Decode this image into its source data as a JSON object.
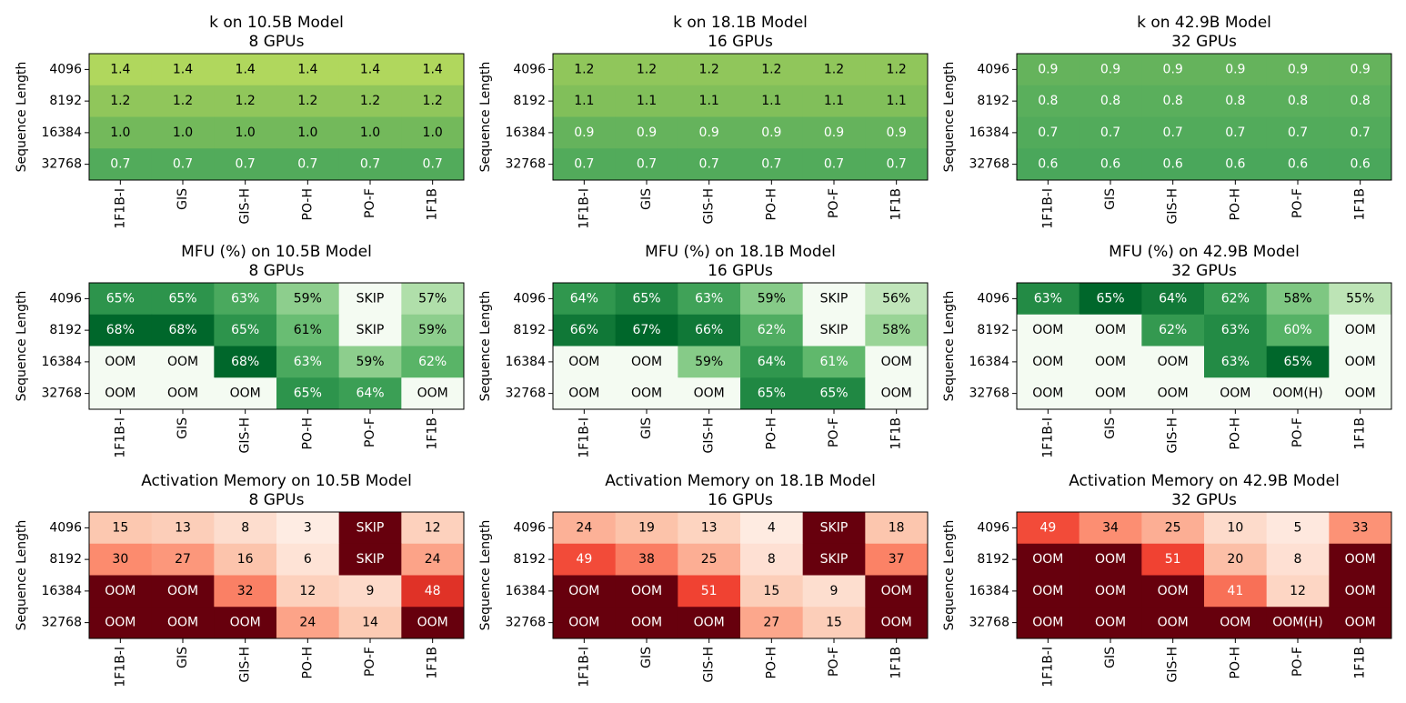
{
  "figure": {
    "ylabel": "Sequence Length",
    "rows": [
      "4096",
      "8192",
      "16384",
      "32768"
    ],
    "cols": [
      "1F1B-I",
      "GIS",
      "GIS-H",
      "PO-H",
      "PO-F",
      "1F1B"
    ]
  },
  "chart_data": [
    {
      "type": "heatmap",
      "title": "k on 10.5B Model",
      "subtitle": "8 GPUs",
      "cmap": "greens-k",
      "values": [
        [
          1.4,
          1.4,
          1.4,
          1.4,
          1.4,
          1.4
        ],
        [
          1.2,
          1.2,
          1.2,
          1.2,
          1.2,
          1.2
        ],
        [
          1.0,
          1.0,
          1.0,
          1.0,
          1.0,
          1.0
        ],
        [
          0.7,
          0.7,
          0.7,
          0.7,
          0.7,
          0.7
        ]
      ],
      "labels": [
        [
          "1.4",
          "1.4",
          "1.4",
          "1.4",
          "1.4",
          "1.4"
        ],
        [
          "1.2",
          "1.2",
          "1.2",
          "1.2",
          "1.2",
          "1.2"
        ],
        [
          "1.0",
          "1.0",
          "1.0",
          "1.0",
          "1.0",
          "1.0"
        ],
        [
          "0.7",
          "0.7",
          "0.7",
          "0.7",
          "0.7",
          "0.7"
        ]
      ],
      "vmin": 0.3,
      "vmax": 1.5
    },
    {
      "type": "heatmap",
      "title": "k on 18.1B Model",
      "subtitle": "16 GPUs",
      "cmap": "greens-k",
      "values": [
        [
          1.2,
          1.2,
          1.2,
          1.2,
          1.2,
          1.2
        ],
        [
          1.1,
          1.1,
          1.1,
          1.1,
          1.1,
          1.1
        ],
        [
          0.9,
          0.9,
          0.9,
          0.9,
          0.9,
          0.9
        ],
        [
          0.7,
          0.7,
          0.7,
          0.7,
          0.7,
          0.7
        ]
      ],
      "labels": [
        [
          "1.2",
          "1.2",
          "1.2",
          "1.2",
          "1.2",
          "1.2"
        ],
        [
          "1.1",
          "1.1",
          "1.1",
          "1.1",
          "1.1",
          "1.1"
        ],
        [
          "0.9",
          "0.9",
          "0.9",
          "0.9",
          "0.9",
          "0.9"
        ],
        [
          "0.7",
          "0.7",
          "0.7",
          "0.7",
          "0.7",
          "0.7"
        ]
      ],
      "vmin": 0.3,
      "vmax": 1.5
    },
    {
      "type": "heatmap",
      "title": "k on 42.9B Model",
      "subtitle": "32 GPUs",
      "cmap": "greens-k",
      "values": [
        [
          0.9,
          0.9,
          0.9,
          0.9,
          0.9,
          0.9
        ],
        [
          0.8,
          0.8,
          0.8,
          0.8,
          0.8,
          0.8
        ],
        [
          0.7,
          0.7,
          0.7,
          0.7,
          0.7,
          0.7
        ],
        [
          0.6,
          0.6,
          0.6,
          0.6,
          0.6,
          0.6
        ]
      ],
      "labels": [
        [
          "0.9",
          "0.9",
          "0.9",
          "0.9",
          "0.9",
          "0.9"
        ],
        [
          "0.8",
          "0.8",
          "0.8",
          "0.8",
          "0.8",
          "0.8"
        ],
        [
          "0.7",
          "0.7",
          "0.7",
          "0.7",
          "0.7",
          "0.7"
        ],
        [
          "0.6",
          "0.6",
          "0.6",
          "0.6",
          "0.6",
          "0.6"
        ]
      ],
      "vmin": 0.3,
      "vmax": 1.5
    },
    {
      "type": "heatmap",
      "title": "MFU (%) on 10.5B Model",
      "subtitle": "8 GPUs",
      "cmap": "greens",
      "values": [
        [
          65,
          65,
          63,
          59,
          null,
          57
        ],
        [
          68,
          68,
          65,
          61,
          null,
          59
        ],
        [
          null,
          null,
          68,
          63,
          59,
          62
        ],
        [
          null,
          null,
          null,
          65,
          64,
          null
        ]
      ],
      "labels": [
        [
          "65%",
          "65%",
          "63%",
          "59%",
          "SKIP",
          "57%"
        ],
        [
          "68%",
          "68%",
          "65%",
          "61%",
          "SKIP",
          "59%"
        ],
        [
          "OOM",
          "OOM",
          "68%",
          "63%",
          "59%",
          "62%"
        ],
        [
          "OOM",
          "OOM",
          "OOM",
          "65%",
          "64%",
          "OOM"
        ]
      ],
      "vmin": 54,
      "vmax": 68
    },
    {
      "type": "heatmap",
      "title": "MFU (%) on 18.1B Model",
      "subtitle": "16 GPUs",
      "cmap": "greens",
      "values": [
        [
          64,
          65,
          63,
          59,
          null,
          56
        ],
        [
          66,
          67,
          66,
          62,
          null,
          58
        ],
        [
          null,
          null,
          59,
          64,
          61,
          null
        ],
        [
          null,
          null,
          null,
          65,
          65,
          null
        ]
      ],
      "labels": [
        [
          "64%",
          "65%",
          "63%",
          "59%",
          "SKIP",
          "56%"
        ],
        [
          "66%",
          "67%",
          "66%",
          "62%",
          "SKIP",
          "58%"
        ],
        [
          "OOM",
          "OOM",
          "59%",
          "64%",
          "61%",
          "OOM"
        ],
        [
          "OOM",
          "OOM",
          "OOM",
          "65%",
          "65%",
          "OOM"
        ]
      ],
      "vmin": 54,
      "vmax": 67
    },
    {
      "type": "heatmap",
      "title": "MFU (%) on 42.9B Model",
      "subtitle": "32 GPUs",
      "cmap": "greens",
      "values": [
        [
          63,
          65,
          64,
          62,
          58,
          55
        ],
        [
          null,
          null,
          62,
          63,
          60,
          null
        ],
        [
          null,
          null,
          null,
          63,
          65,
          null
        ],
        [
          null,
          null,
          null,
          null,
          null,
          null
        ]
      ],
      "labels": [
        [
          "63%",
          "65%",
          "64%",
          "62%",
          "58%",
          "55%"
        ],
        [
          "OOM",
          "OOM",
          "62%",
          "63%",
          "60%",
          "OOM"
        ],
        [
          "OOM",
          "OOM",
          "OOM",
          "63%",
          "65%",
          "OOM"
        ],
        [
          "OOM",
          "OOM",
          "OOM",
          "OOM",
          "OOM(H)",
          "OOM"
        ]
      ],
      "vmin": 53,
      "vmax": 65
    },
    {
      "type": "heatmap",
      "title": "Activation Memory on 10.5B Model",
      "subtitle": "8 GPUs",
      "cmap": "reds",
      "values": [
        [
          15,
          13,
          8,
          3,
          null,
          12
        ],
        [
          30,
          27,
          16,
          6,
          null,
          24
        ],
        [
          null,
          null,
          32,
          12,
          9,
          48
        ],
        [
          null,
          null,
          null,
          24,
          14,
          null
        ]
      ],
      "labels": [
        [
          "15",
          "13",
          "8",
          "3",
          "SKIP",
          "12"
        ],
        [
          "30",
          "27",
          "16",
          "6",
          "SKIP",
          "24"
        ],
        [
          "OOM",
          "OOM",
          "32",
          "12",
          "9",
          "48"
        ],
        [
          "OOM",
          "OOM",
          "OOM",
          "24",
          "14",
          "OOM"
        ]
      ],
      "vmin": 0,
      "vmax": 60
    },
    {
      "type": "heatmap",
      "title": "Activation Memory on 18.1B Model",
      "subtitle": "16 GPUs",
      "cmap": "reds",
      "values": [
        [
          24,
          19,
          13,
          4,
          null,
          18
        ],
        [
          49,
          38,
          25,
          8,
          null,
          37
        ],
        [
          null,
          null,
          51,
          15,
          9,
          null
        ],
        [
          null,
          null,
          null,
          27,
          15,
          null
        ]
      ],
      "labels": [
        [
          "24",
          "19",
          "13",
          "4",
          "SKIP",
          "18"
        ],
        [
          "49",
          "38",
          "25",
          "8",
          "SKIP",
          "37"
        ],
        [
          "OOM",
          "OOM",
          "51",
          "15",
          "9",
          "OOM"
        ],
        [
          "OOM",
          "OOM",
          "OOM",
          "27",
          "15",
          "OOM"
        ]
      ],
      "vmin": 0,
      "vmax": 70
    },
    {
      "type": "heatmap",
      "title": "Activation Memory on 42.9B Model",
      "subtitle": "32 GPUs",
      "cmap": "reds",
      "values": [
        [
          49,
          34,
          25,
          10,
          5,
          33
        ],
        [
          null,
          null,
          51,
          20,
          8,
          null
        ],
        [
          null,
          null,
          null,
          41,
          12,
          null
        ],
        [
          null,
          null,
          null,
          null,
          null,
          null
        ]
      ],
      "labels": [
        [
          "49",
          "34",
          "25",
          "10",
          "5",
          "33"
        ],
        [
          "OOM",
          "OOM",
          "51",
          "20",
          "8",
          "OOM"
        ],
        [
          "OOM",
          "OOM",
          "OOM",
          "41",
          "12",
          "OOM"
        ],
        [
          "OOM",
          "OOM",
          "OOM",
          "OOM",
          "OOM(H)",
          "OOM"
        ]
      ],
      "vmin": 0,
      "vmax": 70
    }
  ]
}
